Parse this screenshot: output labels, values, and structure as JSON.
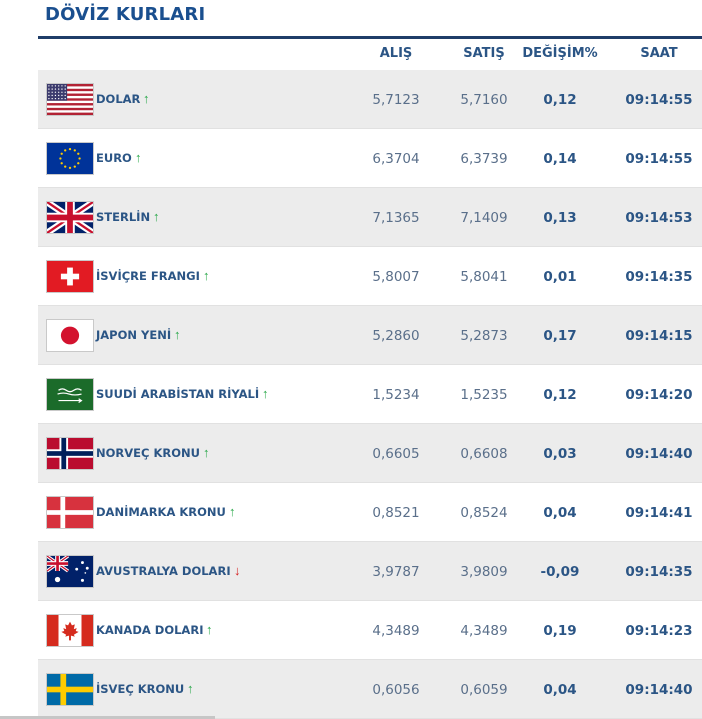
{
  "title": "DÖVİZ KURLARI",
  "columns": {
    "buy": "ALIŞ",
    "sell": "SATIŞ",
    "change": "DEĞİŞİM%",
    "time": "SAAT"
  },
  "colors": {
    "title": "#1a4f8f",
    "up": "#2aa84a",
    "down": "#d42020"
  },
  "rows": [
    {
      "flag": "us-flag-icon",
      "name": "DOLAR",
      "trend": "up",
      "arrow": "↑",
      "buy": "5,7123",
      "sell": "5,7160",
      "change": "0,12",
      "time": "09:14:55"
    },
    {
      "flag": "eu-flag-icon",
      "name": "EURO",
      "trend": "up",
      "arrow": "↑",
      "buy": "6,3704",
      "sell": "6,3739",
      "change": "0,14",
      "time": "09:14:55"
    },
    {
      "flag": "uk-flag-icon",
      "name": "STERLİN",
      "trend": "up",
      "arrow": "↑",
      "buy": "7,1365",
      "sell": "7,1409",
      "change": "0,13",
      "time": "09:14:53"
    },
    {
      "flag": "ch-flag-icon",
      "name": "İSVİÇRE FRANGI",
      "trend": "up",
      "arrow": "↑",
      "buy": "5,8007",
      "sell": "5,8041",
      "change": "0,01",
      "time": "09:14:35"
    },
    {
      "flag": "jp-flag-icon",
      "name": "JAPON YENİ",
      "trend": "up",
      "arrow": "↑",
      "buy": "5,2860",
      "sell": "5,2873",
      "change": "0,17",
      "time": "09:14:15"
    },
    {
      "flag": "sa-flag-icon",
      "name": "SUUDİ ARABİSTAN RİYALİ",
      "trend": "up",
      "arrow": "↑",
      "buy": "1,5234",
      "sell": "1,5235",
      "change": "0,12",
      "time": "09:14:20"
    },
    {
      "flag": "no-flag-icon",
      "name": "NORVEÇ KRONU",
      "trend": "up",
      "arrow": "↑",
      "buy": "0,6605",
      "sell": "0,6608",
      "change": "0,03",
      "time": "09:14:40"
    },
    {
      "flag": "dk-flag-icon",
      "name": "DANİMARKA KRONU",
      "trend": "up",
      "arrow": "↑",
      "buy": "0,8521",
      "sell": "0,8524",
      "change": "0,04",
      "time": "09:14:41"
    },
    {
      "flag": "au-flag-icon",
      "name": "AVUSTRALYA DOLARI",
      "trend": "down",
      "arrow": "↓",
      "buy": "3,9787",
      "sell": "3,9809",
      "change": "-0,09",
      "time": "09:14:35"
    },
    {
      "flag": "ca-flag-icon",
      "name": "KANADA DOLARI",
      "trend": "up",
      "arrow": "↑",
      "buy": "4,3489",
      "sell": "4,3489",
      "change": "0,19",
      "time": "09:14:23"
    },
    {
      "flag": "se-flag-icon",
      "name": "İSVEÇ KRONU",
      "trend": "up",
      "arrow": "↑",
      "buy": "0,6056",
      "sell": "0,6059",
      "change": "0,04",
      "time": "09:14:40"
    }
  ]
}
